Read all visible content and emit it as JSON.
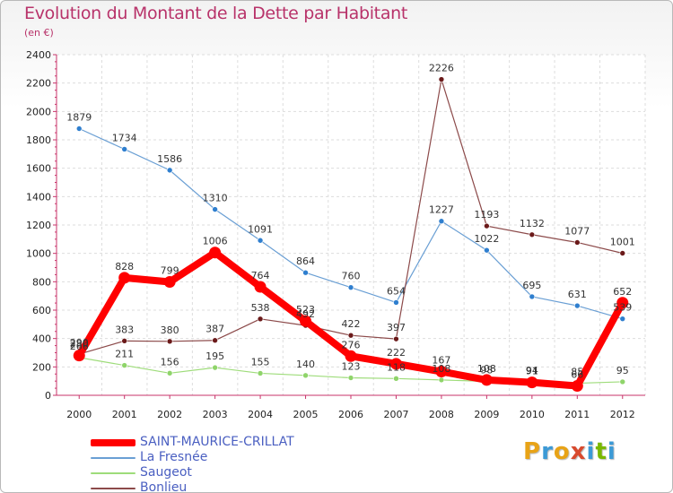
{
  "header": {
    "title": "Evolution du Montant de la Dette par Habitant",
    "subtitle": "(en €)"
  },
  "logo": {
    "letters": [
      "P",
      "r",
      "o",
      "x",
      "i",
      "t",
      "i"
    ],
    "colors": [
      "#e8a317",
      "#3c9ad6",
      "#e8a317",
      "#d84a2e",
      "#3c9ad6",
      "#7ab800",
      "#3c9ad6"
    ]
  },
  "chart_data": {
    "type": "line",
    "x": [
      "2000",
      "2001",
      "2002",
      "2003",
      "2004",
      "2005",
      "2006",
      "2007",
      "2008",
      "2009",
      "2010",
      "2011",
      "2012"
    ],
    "ylim": [
      0,
      2400
    ],
    "yticks": [
      "0",
      "200",
      "400",
      "600",
      "800",
      "1000",
      "1200",
      "1400",
      "1600",
      "1800",
      "2000",
      "2200",
      "2400"
    ],
    "grid": true,
    "legend_placement": "bottom-left",
    "series": [
      {
        "name": "La Fresnée",
        "values": [
          1879,
          1734,
          1586,
          1310,
          1091,
          864,
          760,
          654,
          1227,
          1022,
          695,
          631,
          539
        ],
        "labels": [
          "1879",
          "1734",
          "1586",
          "1310",
          "1091",
          "864",
          "760",
          "654",
          "1227",
          "1022",
          "695",
          "631",
          "539"
        ],
        "color": "#6a9fd4",
        "marker_color": "#2f7fcf"
      },
      {
        "name": "Saugeot",
        "values": [
          266,
          211,
          156,
          195,
          155,
          140,
          123,
          118,
          108,
          98,
          94,
          85,
          95
        ],
        "labels": [
          "266",
          "211",
          "156",
          "195",
          "155",
          "140",
          "123",
          "118",
          "108",
          "98",
          "94",
          "85",
          "95"
        ],
        "color": "#9edc7a",
        "marker_color": "#8fd46a"
      },
      {
        "name": "Bonlieu",
        "values": [
          290,
          383,
          380,
          387,
          538,
          492,
          422,
          397,
          2226,
          1193,
          1132,
          1077,
          1001
        ],
        "labels": [
          "290",
          "383",
          "380",
          "387",
          "538",
          "492",
          "422",
          "397",
          "2226",
          "1193",
          "1132",
          "1077",
          "1001"
        ],
        "color": "#8c4a4a",
        "marker_color": "#6b1a1a"
      },
      {
        "name": "SAINT-MAURICE-CRILLAT",
        "values": [
          280,
          828,
          799,
          1006,
          764,
          523,
          276,
          222,
          167,
          108,
          91,
          66,
          652
        ],
        "labels": [
          "280",
          "828",
          "799",
          "1006",
          "764",
          "523",
          "276",
          "222",
          "167",
          "108",
          "91",
          "66",
          "652"
        ],
        "color": "#ff0000",
        "marker_color": "#ff0000",
        "highlight": true
      }
    ],
    "legend_order": [
      "SAINT-MAURICE-CRILLAT",
      "La Fresnée",
      "Saugeot",
      "Bonlieu"
    ]
  }
}
